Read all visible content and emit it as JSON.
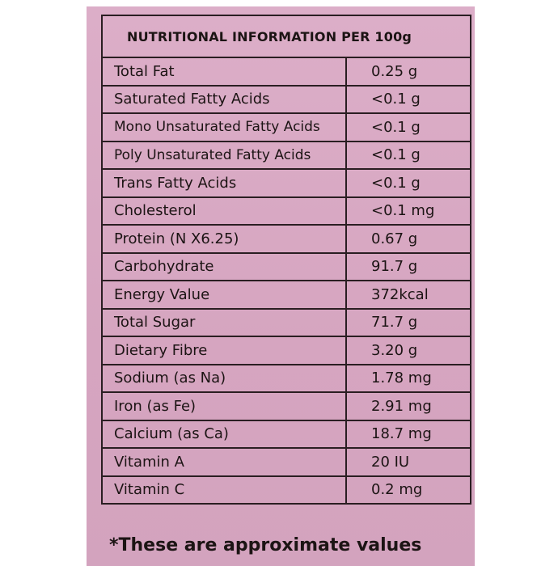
{
  "table": {
    "header": "NUTRITIONAL INFORMATION PER 100g",
    "rows": [
      {
        "name": "Total Fat",
        "value": "0.25 g"
      },
      {
        "name": "Saturated Fatty Acids",
        "value": "<0.1 g"
      },
      {
        "name": "Mono Unsaturated Fatty Acids",
        "value": "<0.1 g"
      },
      {
        "name": "Poly Unsaturated Fatty Acids",
        "value": "<0.1 g"
      },
      {
        "name": "Trans Fatty Acids",
        "value": "<0.1 g"
      },
      {
        "name": "Cholesterol",
        "value": "<0.1 mg"
      },
      {
        "name": "Protein (N X6.25)",
        "value": "0.67 g"
      },
      {
        "name": "Carbohydrate",
        "value": "91.7 g"
      },
      {
        "name": "Energy Value",
        "value": "372kcal"
      },
      {
        "name": "Total Sugar",
        "value": "71.7 g"
      },
      {
        "name": "Dietary Fibre",
        "value": "3.20 g"
      },
      {
        "name": "Sodium (as Na)",
        "value": "1.78 mg"
      },
      {
        "name": "Iron (as Fe)",
        "value": "2.91 mg"
      },
      {
        "name": "Calcium (as Ca)",
        "value": "18.7 mg"
      },
      {
        "name": "Vitamin A",
        "value": "20 IU"
      },
      {
        "name": "Vitamin C",
        "value": "0.2 mg"
      }
    ]
  },
  "footnote": "*These are approximate values",
  "colors": {
    "package": "#d8a9c3",
    "ink": "#1c1414"
  }
}
